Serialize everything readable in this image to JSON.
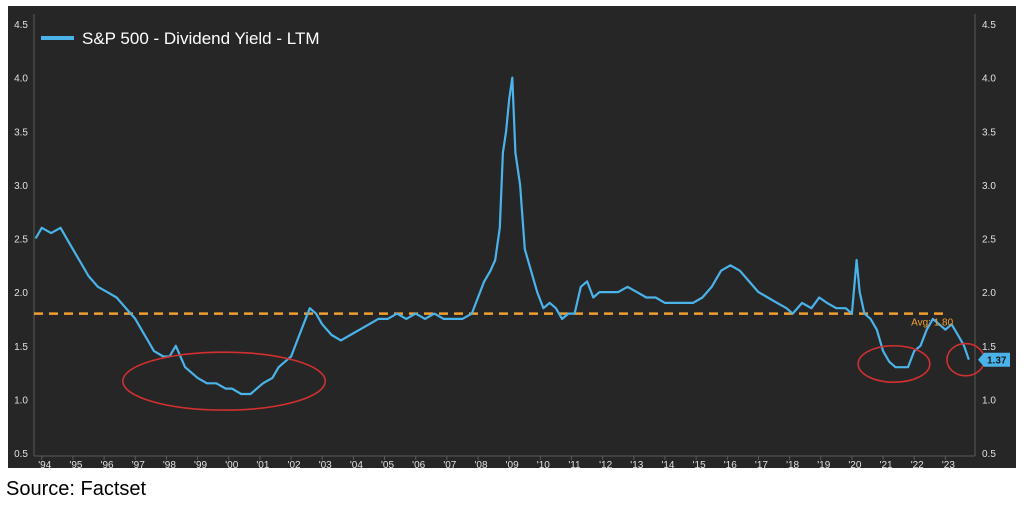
{
  "source_note": "Source: Factset",
  "chart_data": {
    "type": "line",
    "legend": {
      "label": "S&P 500 - Dividend Yield - LTM",
      "position": "top-left"
    },
    "ylim": [
      0.5,
      4.5
    ],
    "y_ticks": [
      "0.5",
      "1.0",
      "1.5",
      "2.0",
      "2.5",
      "3.0",
      "3.5",
      "4.0",
      "4.5"
    ],
    "x_range": [
      1993.75,
      2023.95
    ],
    "x_ticks": [
      "'94",
      "'95",
      "'96",
      "'97",
      "'98",
      "'99",
      "'00",
      "'01",
      "'02",
      "'03",
      "'04",
      "'05",
      "'06",
      "'07",
      "'08",
      "'09",
      "'10",
      "'11",
      "'12",
      "'13",
      "'14",
      "'15",
      "'16",
      "'17",
      "'18",
      "'19",
      "'20",
      "'21",
      "'22",
      "'23"
    ],
    "grid": false,
    "colors": {
      "background": "#262626",
      "line": "#4ab3ea",
      "average": "#f0a030",
      "highlight": "#d03030"
    },
    "series": [
      {
        "name": "S&P 500 - Dividend Yield - LTM",
        "x": [
          1993.8,
          1994.0,
          1994.3,
          1994.6,
          1994.9,
          1995.2,
          1995.5,
          1995.8,
          1996.1,
          1996.4,
          1996.7,
          1997.0,
          1997.3,
          1997.6,
          1997.9,
          1998.1,
          1998.3,
          1998.6,
          1998.8,
          1999.0,
          1999.3,
          1999.6,
          1999.9,
          2000.1,
          2000.4,
          2000.7,
          2000.9,
          2001.1,
          2001.4,
          2001.6,
          2001.8,
          2002.0,
          2002.2,
          2002.4,
          2002.6,
          2002.8,
          2003.0,
          2003.3,
          2003.6,
          2003.9,
          2004.2,
          2004.5,
          2004.8,
          2005.1,
          2005.4,
          2005.7,
          2006.0,
          2006.3,
          2006.6,
          2006.9,
          2007.2,
          2007.5,
          2007.8,
          2008.0,
          2008.2,
          2008.4,
          2008.55,
          2008.7,
          2008.8,
          2008.9,
          2009.0,
          2009.1,
          2009.2,
          2009.35,
          2009.5,
          2009.7,
          2009.9,
          2010.1,
          2010.3,
          2010.5,
          2010.7,
          2010.9,
          2011.1,
          2011.3,
          2011.5,
          2011.7,
          2011.9,
          2012.2,
          2012.5,
          2012.8,
          2013.1,
          2013.4,
          2013.7,
          2014.0,
          2014.3,
          2014.6,
          2014.9,
          2015.2,
          2015.5,
          2015.8,
          2016.1,
          2016.4,
          2016.7,
          2017.0,
          2017.3,
          2017.6,
          2017.9,
          2018.1,
          2018.4,
          2018.7,
          2018.95,
          2019.2,
          2019.5,
          2019.8,
          2020.0,
          2020.15,
          2020.25,
          2020.4,
          2020.6,
          2020.8,
          2021.0,
          2021.2,
          2021.4,
          2021.6,
          2021.8,
          2022.0,
          2022.2,
          2022.4,
          2022.6,
          2022.8,
          2023.0,
          2023.2,
          2023.4,
          2023.6,
          2023.75
        ],
        "values": [
          2.5,
          2.6,
          2.55,
          2.6,
          2.45,
          2.3,
          2.15,
          2.05,
          2.0,
          1.95,
          1.85,
          1.75,
          1.6,
          1.45,
          1.4,
          1.4,
          1.5,
          1.3,
          1.25,
          1.2,
          1.15,
          1.15,
          1.1,
          1.1,
          1.05,
          1.05,
          1.1,
          1.15,
          1.2,
          1.3,
          1.35,
          1.4,
          1.55,
          1.7,
          1.85,
          1.8,
          1.7,
          1.6,
          1.55,
          1.6,
          1.65,
          1.7,
          1.75,
          1.75,
          1.8,
          1.75,
          1.8,
          1.75,
          1.8,
          1.75,
          1.75,
          1.75,
          1.8,
          1.95,
          2.1,
          2.2,
          2.3,
          2.6,
          3.3,
          3.5,
          3.8,
          4.0,
          3.3,
          3.0,
          2.4,
          2.2,
          2.0,
          1.85,
          1.9,
          1.85,
          1.75,
          1.8,
          1.8,
          2.05,
          2.1,
          1.95,
          2.0,
          2.0,
          2.0,
          2.05,
          2.0,
          1.95,
          1.95,
          1.9,
          1.9,
          1.9,
          1.9,
          1.95,
          2.05,
          2.2,
          2.25,
          2.2,
          2.1,
          2.0,
          1.95,
          1.9,
          1.85,
          1.8,
          1.9,
          1.85,
          1.95,
          1.9,
          1.85,
          1.85,
          1.8,
          2.3,
          2.0,
          1.8,
          1.75,
          1.65,
          1.45,
          1.35,
          1.3,
          1.3,
          1.3,
          1.45,
          1.5,
          1.65,
          1.75,
          1.7,
          1.65,
          1.7,
          1.6,
          1.5,
          1.37
        ]
      }
    ],
    "average": {
      "value": 1.8,
      "label": "Avg: 1.80"
    },
    "last_value": {
      "value": 1.37,
      "label": "1.37"
    },
    "annotations": [
      {
        "type": "ellipse",
        "x_center": 1999.85,
        "y_center": 1.17,
        "x_radius": 3.25,
        "y_radius": 0.27
      },
      {
        "type": "ellipse",
        "x_center": 2021.35,
        "y_center": 1.33,
        "x_radius": 1.15,
        "y_radius": 0.17
      },
      {
        "type": "ellipse",
        "x_center": 2023.65,
        "y_center": 1.37,
        "x_radius": 0.6,
        "y_radius": 0.15
      }
    ]
  }
}
